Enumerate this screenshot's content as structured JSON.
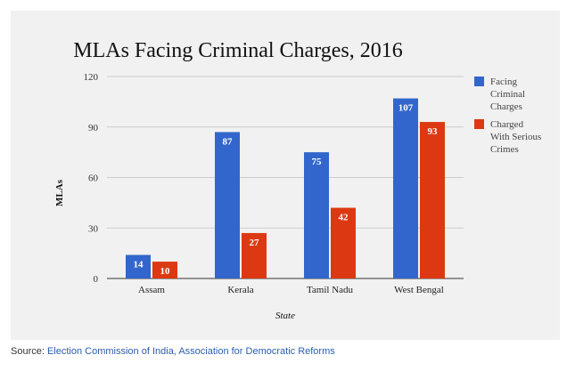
{
  "chart_data": {
    "type": "bar",
    "title": "MLAs Facing Criminal Charges, 2016",
    "xlabel": "State",
    "ylabel": "MLAs",
    "ylim": [
      0,
      120
    ],
    "yticks": [
      0,
      30,
      60,
      90,
      120
    ],
    "grid": true,
    "legend_position": "right",
    "categories": [
      "Assam",
      "Kerala",
      "Tamil Nadu",
      "West Bengal"
    ],
    "series": [
      {
        "name": "Facing Criminal Charges",
        "legend_lines": [
          "Facing",
          "Criminal",
          "Charges"
        ],
        "color": "#3366cc",
        "values": [
          14,
          87,
          75,
          107
        ]
      },
      {
        "name": "Charged With Serious Crimes",
        "legend_lines": [
          "Charged",
          "With Serious",
          "Crimes"
        ],
        "color": "#dc3912",
        "values": [
          10,
          27,
          42,
          93
        ]
      }
    ]
  },
  "source": {
    "prefix": "Source: ",
    "text": "Election Commission of India, Association for Democratic Reforms"
  }
}
